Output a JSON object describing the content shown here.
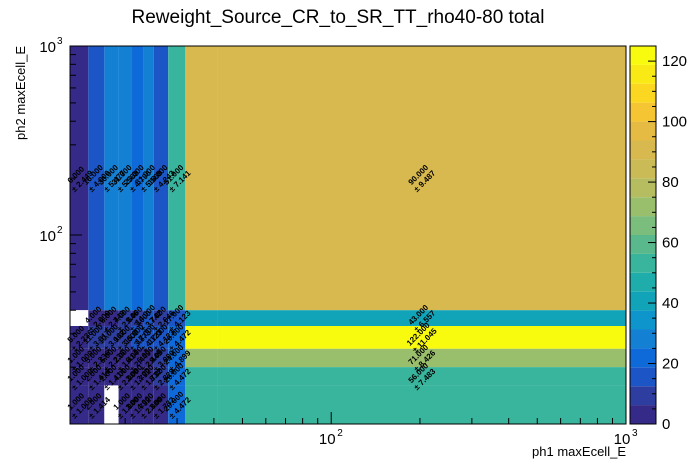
{
  "chart_data": {
    "type": "heatmap",
    "title": "Reweight_Source_CR_to_SR_TT_rho40-80 total",
    "xlabel": "ph1 maxEcell_E",
    "ylabel": "ph2 maxEcell_E",
    "xscale": "log",
    "yscale": "log",
    "xlim": [
      13,
      1000
    ],
    "ylim": [
      10,
      1000
    ],
    "x_ticks": [
      {
        "base": "10",
        "exp": "2",
        "value": 100
      },
      {
        "base": "10",
        "exp": "3",
        "value": 1000
      }
    ],
    "y_ticks": [
      {
        "base": "10",
        "exp": "2",
        "value": 100
      },
      {
        "base": "10",
        "exp": "3",
        "value": 1000
      }
    ],
    "zlim": [
      0,
      125
    ],
    "z_ticks": [
      "0",
      "20",
      "40",
      "60",
      "80",
      "100",
      "120"
    ],
    "x_edges": [
      13,
      15,
      17,
      19,
      21,
      23,
      25,
      28,
      32,
      41,
      1000
    ],
    "y_edges": [
      10,
      16,
      20,
      25,
      33,
      40,
      1000
    ],
    "grid": false,
    "cells": [
      {
        "x0": 13,
        "x1": 15,
        "y0": 40,
        "y1": 1000,
        "value": 6,
        "label": "6.000",
        "error": "± 2.449"
      },
      {
        "x0": 15,
        "x1": 17,
        "y0": 40,
        "y1": 1000,
        "value": 16,
        "label": "16.000",
        "error": "± 4.000"
      },
      {
        "x0": 17,
        "x1": 19,
        "y0": 40,
        "y1": 1000,
        "value": 30,
        "label": "30.000",
        "error": "± 5.477"
      },
      {
        "x0": 19,
        "x1": 21,
        "y0": 40,
        "y1": 1000,
        "value": 31,
        "label": "31.000",
        "error": "± 5.568"
      },
      {
        "x0": 21,
        "x1": 23,
        "y0": 40,
        "y1": 1000,
        "value": 23,
        "label": "23.000",
        "error": "± 4.796"
      },
      {
        "x0": 23,
        "x1": 25,
        "y0": 40,
        "y1": 1000,
        "value": 31,
        "label": "31.000",
        "error": "± 5.568"
      },
      {
        "x0": 25,
        "x1": 28,
        "y0": 40,
        "y1": 1000,
        "value": 18,
        "label": "18.000",
        "error": "± 4.243"
      },
      {
        "x0": 28,
        "x1": 32,
        "y0": 40,
        "y1": 1000,
        "value": 51,
        "label": "51.000",
        "error": "± 7.141"
      },
      {
        "x0": 32,
        "x1": 41,
        "y0": 40,
        "y1": 1000,
        "value": 90,
        "label": "",
        "error": ""
      },
      {
        "x0": 41,
        "x1": 1000,
        "y0": 40,
        "y1": 1000,
        "value": 90,
        "label": "90.000",
        "error": "± 9.487"
      },
      {
        "x0": 13,
        "x1": 15,
        "y0": 33,
        "y1": 40,
        "value": 0,
        "label": "",
        "error": ""
      },
      {
        "x0": 15,
        "x1": 17,
        "y0": 33,
        "y1": 40,
        "value": 4,
        "label": "4.000",
        "error": "± 2.000"
      },
      {
        "x0": 17,
        "x1": 19,
        "y0": 33,
        "y1": 40,
        "value": 6,
        "label": "6.000",
        "error": "± 2.449"
      },
      {
        "x0": 19,
        "x1": 21,
        "y0": 33,
        "y1": 40,
        "value": 7,
        "label": "7.000",
        "error": "± 2.646"
      },
      {
        "x0": 21,
        "x1": 23,
        "y0": 33,
        "y1": 40,
        "value": 9,
        "label": "9.000",
        "error": "± 3.000"
      },
      {
        "x0": 23,
        "x1": 25,
        "y0": 33,
        "y1": 40,
        "value": 14,
        "label": "14.000",
        "error": "± 3.742"
      },
      {
        "x0": 25,
        "x1": 28,
        "y0": 33,
        "y1": 40,
        "value": 7,
        "label": "7.000",
        "error": "± 2.646"
      },
      {
        "x0": 28,
        "x1": 32,
        "y0": 33,
        "y1": 40,
        "value": 17,
        "label": "17.000",
        "error": "± 4.123"
      },
      {
        "x0": 32,
        "x1": 41,
        "y0": 33,
        "y1": 40,
        "value": 43,
        "label": "",
        "error": ""
      },
      {
        "x0": 41,
        "x1": 1000,
        "y0": 33,
        "y1": 40,
        "value": 43,
        "label": "43.000",
        "error": "± 6.557"
      },
      {
        "x0": 13,
        "x1": 15,
        "y0": 25,
        "y1": 33,
        "value": 5,
        "label": "5.000",
        "error": "± 2.236"
      },
      {
        "x0": 15,
        "x1": 17,
        "y0": 25,
        "y1": 33,
        "value": 11,
        "label": "11.000",
        "error": "± 3.317"
      },
      {
        "x0": 17,
        "x1": 19,
        "y0": 25,
        "y1": 33,
        "value": 10,
        "label": "10.000",
        "error": "± 3.162"
      },
      {
        "x0": 19,
        "x1": 21,
        "y0": 25,
        "y1": 33,
        "value": 9,
        "label": "9.000",
        "error": "± 3.000"
      },
      {
        "x0": 21,
        "x1": 23,
        "y0": 25,
        "y1": 33,
        "value": 15,
        "label": "15.000",
        "error": "± 3.873"
      },
      {
        "x0": 23,
        "x1": 25,
        "y0": 25,
        "y1": 33,
        "value": 17,
        "label": "17.000",
        "error": "± 4.123"
      },
      {
        "x0": 25,
        "x1": 28,
        "y0": 25,
        "y1": 33,
        "value": 17,
        "label": "17.000",
        "error": "± 4.123"
      },
      {
        "x0": 28,
        "x1": 32,
        "y0": 25,
        "y1": 33,
        "value": 20,
        "label": "20.000",
        "error": "± 4.472"
      },
      {
        "x0": 32,
        "x1": 41,
        "y0": 25,
        "y1": 33,
        "value": 122,
        "label": "",
        "error": ""
      },
      {
        "x0": 41,
        "x1": 1000,
        "y0": 25,
        "y1": 33,
        "value": 122,
        "label": "122.000",
        "error": "± 11.045"
      },
      {
        "x0": 13,
        "x1": 15,
        "y0": 20,
        "y1": 25,
        "value": 1,
        "label": "1.000",
        "error": "± 1.000"
      },
      {
        "x0": 15,
        "x1": 17,
        "y0": 20,
        "y1": 25,
        "value": 5,
        "label": "5.000",
        "error": "± 2.236"
      },
      {
        "x0": 17,
        "x1": 19,
        "y0": 20,
        "y1": 25,
        "value": 5,
        "label": "5.000",
        "error": "± 2.236"
      },
      {
        "x0": 19,
        "x1": 21,
        "y0": 20,
        "y1": 25,
        "value": 2,
        "label": "2.000",
        "error": "± 1.414"
      },
      {
        "x0": 21,
        "x1": 23,
        "y0": 20,
        "y1": 25,
        "value": 6,
        "label": "6.000",
        "error": "± 2.449"
      },
      {
        "x0": 23,
        "x1": 25,
        "y0": 20,
        "y1": 25,
        "value": 6,
        "label": "6.000",
        "error": "± 2.449"
      },
      {
        "x0": 25,
        "x1": 28,
        "y0": 20,
        "y1": 25,
        "value": 9,
        "label": "9.000",
        "error": "± 3.000"
      },
      {
        "x0": 28,
        "x1": 32,
        "y0": 20,
        "y1": 25,
        "value": 24,
        "label": "24.000",
        "error": "± 4.899"
      },
      {
        "x0": 32,
        "x1": 41,
        "y0": 20,
        "y1": 25,
        "value": 71,
        "label": "",
        "error": ""
      },
      {
        "x0": 41,
        "x1": 1000,
        "y0": 20,
        "y1": 25,
        "value": 71,
        "label": "71.000",
        "error": "± 8.426"
      },
      {
        "x0": 13,
        "x1": 15,
        "y0": 16,
        "y1": 20,
        "value": 1,
        "label": "1.000",
        "error": "± 1.000"
      },
      {
        "x0": 15,
        "x1": 17,
        "y0": 16,
        "y1": 20,
        "value": 2,
        "label": "2.000",
        "error": "± 1.414"
      },
      {
        "x0": 17,
        "x1": 19,
        "y0": 16,
        "y1": 20,
        "value": 2,
        "label": "2.000",
        "error": "± 1.414"
      },
      {
        "x0": 19,
        "x1": 21,
        "y0": 16,
        "y1": 20,
        "value": 4,
        "label": "4.000",
        "error": "± 2.000"
      },
      {
        "x0": 21,
        "x1": 23,
        "y0": 16,
        "y1": 20,
        "value": 3,
        "label": "3.000",
        "error": "± 1.732"
      },
      {
        "x0": 23,
        "x1": 25,
        "y0": 16,
        "y1": 20,
        "value": 3,
        "label": "3.000",
        "error": "± 1.732"
      },
      {
        "x0": 25,
        "x1": 28,
        "y0": 16,
        "y1": 20,
        "value": 8,
        "label": "8.000",
        "error": "± 2.828"
      },
      {
        "x0": 28,
        "x1": 32,
        "y0": 16,
        "y1": 20,
        "value": 20,
        "label": "20.000",
        "error": "± 4.472"
      },
      {
        "x0": 32,
        "x1": 41,
        "y0": 16,
        "y1": 20,
        "value": 56,
        "label": "",
        "error": ""
      },
      {
        "x0": 41,
        "x1": 1000,
        "y0": 16,
        "y1": 20,
        "value": 56,
        "label": "56.000",
        "error": "± 7.483"
      },
      {
        "x0": 13,
        "x1": 15,
        "y0": 10,
        "y1": 16,
        "value": 1,
        "label": "1.000",
        "error": "± 1.000"
      },
      {
        "x0": 15,
        "x1": 17,
        "y0": 10,
        "y1": 16,
        "value": 2,
        "label": "2.000",
        "error": "± 1.414"
      },
      {
        "x0": 17,
        "x1": 19,
        "y0": 10,
        "y1": 16,
        "value": 0,
        "label": "",
        "error": ""
      },
      {
        "x0": 19,
        "x1": 21,
        "y0": 10,
        "y1": 16,
        "value": 1,
        "label": "1.000",
        "error": "± 1.000"
      },
      {
        "x0": 21,
        "x1": 23,
        "y0": 10,
        "y1": 16,
        "value": 3,
        "label": "3.000",
        "error": "± 1.732"
      },
      {
        "x0": 23,
        "x1": 25,
        "y0": 10,
        "y1": 16,
        "value": 4,
        "label": "4.000",
        "error": "± 2.000"
      },
      {
        "x0": 25,
        "x1": 28,
        "y0": 10,
        "y1": 16,
        "value": 3,
        "label": "3.000",
        "error": "± 1.732"
      },
      {
        "x0": 28,
        "x1": 32,
        "y0": 10,
        "y1": 16,
        "value": 20,
        "label": "20.000",
        "error": "± 4.472"
      },
      {
        "x0": 32,
        "x1": 41,
        "y0": 10,
        "y1": 16,
        "value": 56,
        "label": "",
        "error": ""
      },
      {
        "x0": 41,
        "x1": 1000,
        "y0": 10,
        "y1": 16,
        "value": 56,
        "label": "",
        "error": ""
      }
    ],
    "palette_colors": [
      "#352a87",
      "#2d3ea0",
      "#1b55c6",
      "#0f6ad9",
      "#1480d4",
      "#0e95cc",
      "#11a3b8",
      "#1fadab",
      "#39b59d",
      "#5ab98c",
      "#7abd7c",
      "#9abf6c",
      "#b6bd60",
      "#cbbb57",
      "#d7b94f",
      "#e5bb43",
      "#f5c533",
      "#fbd722",
      "#f9ea15",
      "#f9fb0e"
    ]
  }
}
